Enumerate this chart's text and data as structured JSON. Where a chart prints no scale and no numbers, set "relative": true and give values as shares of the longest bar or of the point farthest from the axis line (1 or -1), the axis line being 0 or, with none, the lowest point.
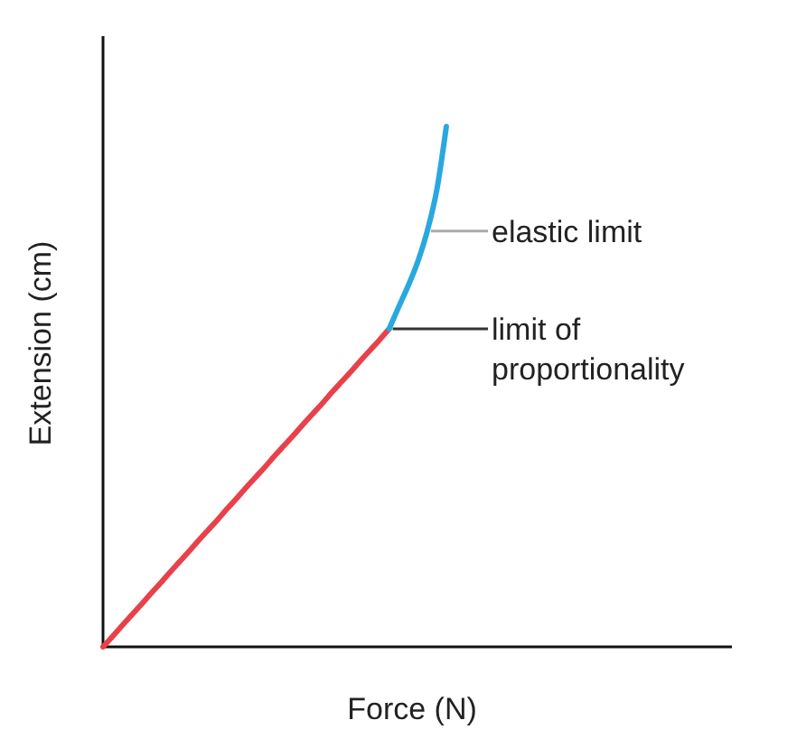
{
  "chart_data": {
    "type": "line",
    "relative": true,
    "xlabel": "Force (N)",
    "ylabel": "Extension (cm)",
    "categories": [
      null,
      null,
      null,
      null,
      null,
      null,
      null,
      null,
      null,
      null,
      null,
      null,
      null,
      null,
      null,
      null,
      null,
      null,
      null,
      null,
      null,
      null,
      null,
      null,
      null,
      null,
      null,
      null,
      null,
      null,
      null,
      null,
      null,
      null,
      null,
      null,
      null,
      null,
      null,
      null,
      null,
      null,
      null,
      null,
      null,
      null,
      null,
      null,
      null,
      null,
      null,
      null,
      null,
      null,
      null,
      null,
      null,
      null,
      null,
      null,
      null,
      null,
      null,
      null,
      null,
      null
    ],
    "series": [
      {
        "color": "#e8414a",
        "values": [
          0,
          0.02,
          0.041,
          0.061,
          0.081,
          0.102,
          0.122,
          0.143,
          0.163,
          0.183,
          0.204,
          0.224,
          0.244,
          0.265,
          0.285,
          0.306,
          0.326,
          0.346,
          0.367,
          0.387,
          0.407,
          0.428,
          0.448,
          0.468,
          0.489,
          0.509,
          0.529,
          0.55,
          0.57,
          0.59,
          0.611,
          null,
          null,
          null,
          null,
          null,
          null,
          null,
          null,
          null,
          null,
          null,
          null,
          null,
          null,
          null,
          null,
          null,
          null,
          null,
          null,
          null,
          null,
          null,
          null,
          null,
          null,
          null,
          null,
          null,
          null,
          null,
          null,
          null,
          null,
          null
        ]
      },
      {
        "color": "#29a8e0",
        "values": [
          null,
          null,
          null,
          null,
          null,
          null,
          null,
          null,
          null,
          null,
          null,
          null,
          null,
          null,
          null,
          null,
          null,
          null,
          null,
          null,
          null,
          null,
          null,
          null,
          null,
          null,
          null,
          null,
          null,
          null,
          0.611,
          0.653,
          0.694,
          0.74,
          0.799,
          0.878,
          1.0,
          null,
          null,
          null,
          null,
          null,
          null,
          null,
          null,
          null,
          null,
          null,
          null,
          null,
          null,
          null,
          null,
          null,
          null,
          null,
          null,
          null,
          null,
          null,
          null,
          null,
          null,
          null,
          null,
          null
        ]
      }
    ],
    "annotations": [
      "elastic limit",
      "limit of proportionality"
    ]
  }
}
